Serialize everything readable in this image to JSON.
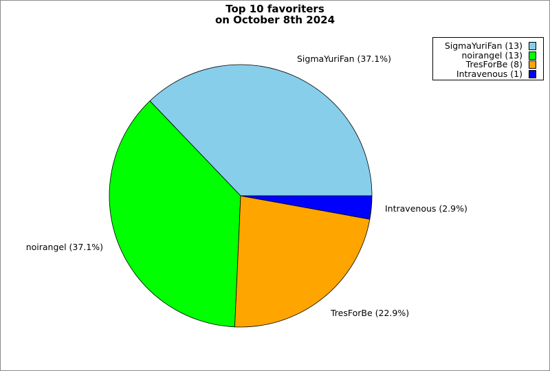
{
  "title": {
    "line1": "Top 10 favoriters",
    "line2": "on October 8th 2024"
  },
  "chart_data": {
    "type": "pie",
    "title": "Top 10 favoriters on October 8th 2024",
    "slices": [
      {
        "name": "SigmaYuriFan",
        "count": 13,
        "percent": 37.1,
        "color": "#87ceeb",
        "label": "SigmaYuriFan (37.1%)",
        "legend": "SigmaYuriFan (13)"
      },
      {
        "name": "noirangel",
        "count": 13,
        "percent": 37.1,
        "color": "#00ff00",
        "label": "noirangel (37.1%)",
        "legend": "noirangel (13)"
      },
      {
        "name": "TresForBe",
        "count": 8,
        "percent": 22.9,
        "color": "#ffa500",
        "label": "TresForBe (22.9%)",
        "legend": "TresForBe (8)"
      },
      {
        "name": "Intravenous",
        "count": 1,
        "percent": 2.9,
        "color": "#0000ff",
        "label": "Intravenous (2.9%)",
        "legend": "Intravenous (1)"
      }
    ],
    "start_direction": "3 o'clock",
    "rotation": "counterclockwise",
    "legend_position": "top-right"
  }
}
